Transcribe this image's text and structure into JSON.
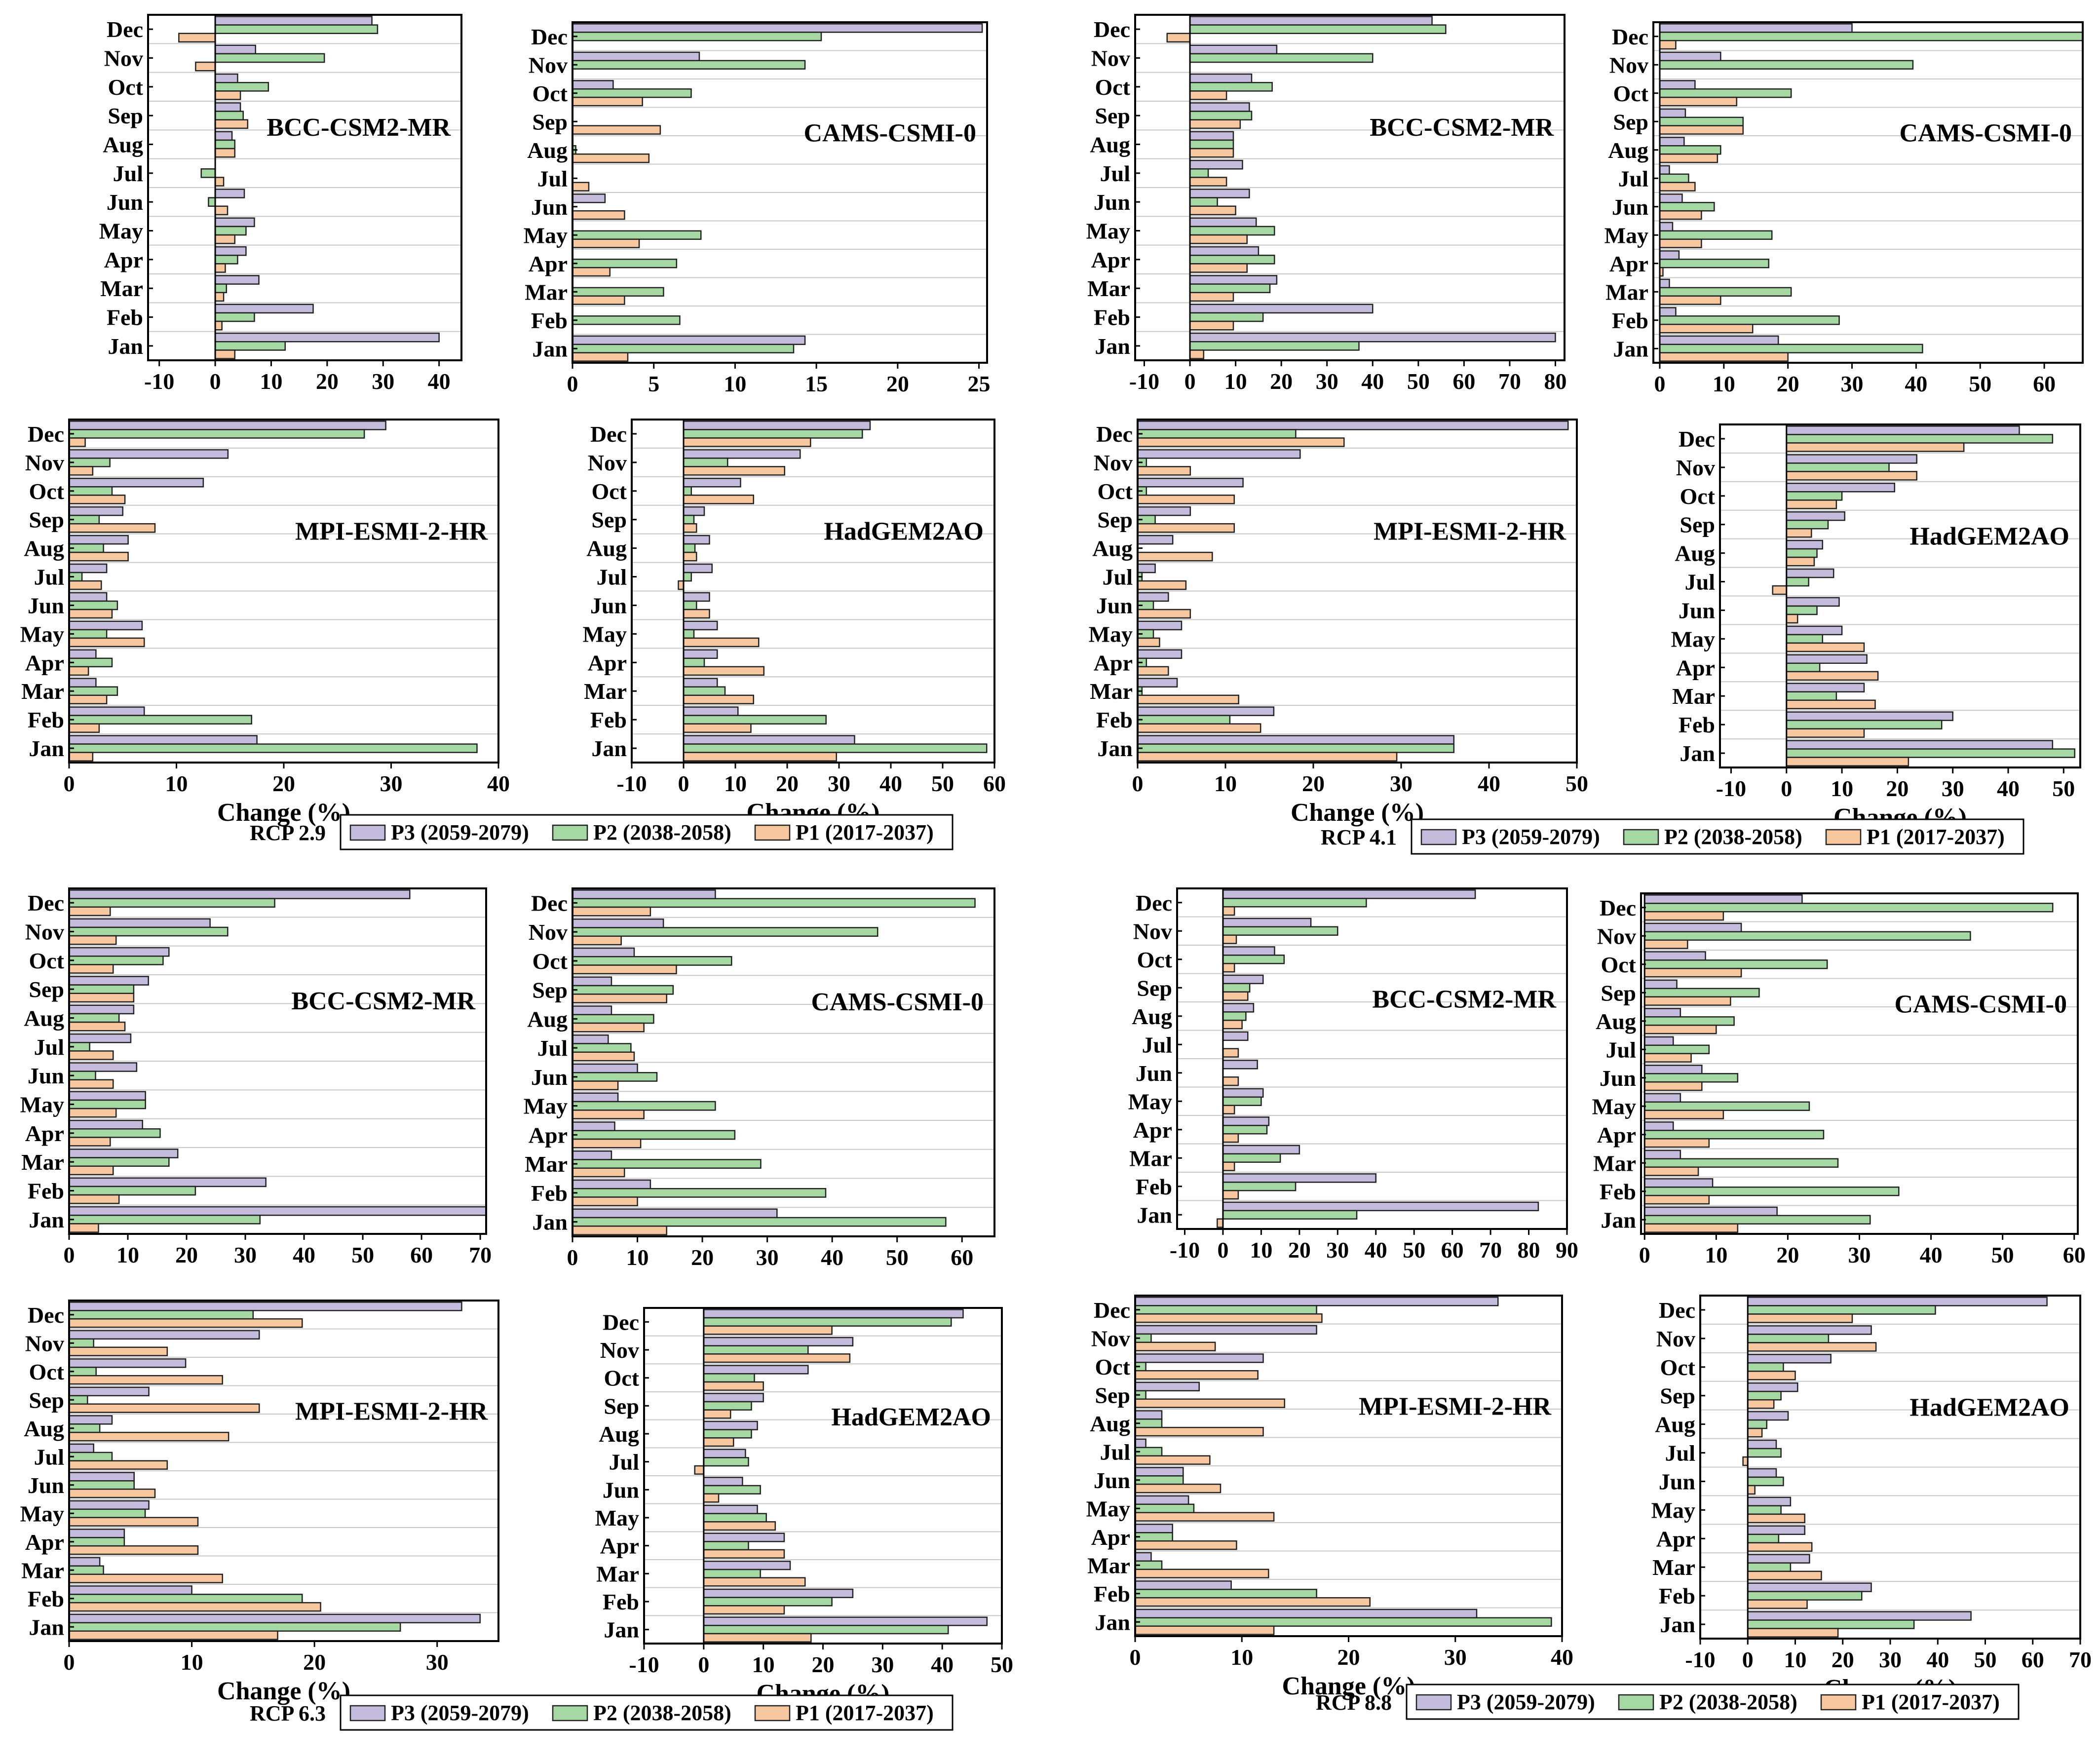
{
  "figure": {
    "months": [
      "Jan",
      "Feb",
      "Mar",
      "Apr",
      "May",
      "Jun",
      "Jul",
      "Aug",
      "Sep",
      "Oct",
      "Nov",
      "Dec"
    ],
    "xlabel": "Change (%)",
    "series_names": [
      "P3 (2059-2079)",
      "P2 (2038-2058)",
      "P1 (2017-2037)"
    ],
    "colors": {
      "P3": "#c5bbdc",
      "P2": "#a6d8a4",
      "P1": "#f7c8a0",
      "edge": "#222222",
      "grid": "#c8c8c8"
    },
    "groups": [
      {
        "label": "RCP 2.9"
      },
      {
        "label": "RCP 4.1"
      },
      {
        "label": "RCP 6.3"
      },
      {
        "label": "RCP 8.8"
      }
    ]
  },
  "chart_data": [
    {
      "type": "bar",
      "orientation": "horizontal",
      "scenario": "RCP 2.9",
      "title": "BCC-CSM2-MR",
      "xlabel": "",
      "xlim": [
        -12,
        44
      ],
      "xticks": [
        -10,
        0,
        10,
        20,
        30,
        40
      ],
      "series": [
        {
          "name": "P3 (2059-2079)",
          "values": [
            40,
            17.5,
            7.8,
            5.5,
            7,
            5.2,
            0,
            3,
            4.5,
            4,
            7.2,
            28
          ]
        },
        {
          "name": "P2 (2038-2058)",
          "values": [
            12.5,
            7,
            2,
            4,
            5.5,
            -1.2,
            -2.5,
            3.5,
            5,
            9.5,
            19.5,
            29
          ]
        },
        {
          "name": "P1 (2017-2037)",
          "values": [
            3.5,
            1.2,
            1.5,
            1.8,
            3.5,
            2.2,
            1.5,
            3.5,
            5.8,
            4.5,
            -3.5,
            -6.5
          ]
        }
      ]
    },
    {
      "type": "bar",
      "orientation": "horizontal",
      "scenario": "RCP 2.9",
      "title": "CAMS-CSMI-0",
      "xlabel": "",
      "xlim": [
        0,
        25.5
      ],
      "xticks": [
        0,
        5,
        10,
        15,
        20,
        25
      ],
      "series": [
        {
          "name": "P3 (2059-2079)",
          "values": [
            14.3,
            0,
            0,
            0,
            0,
            2,
            0,
            0,
            0,
            2.5,
            7.8,
            25.2
          ]
        },
        {
          "name": "P2 (2038-2058)",
          "values": [
            13.6,
            6.6,
            5.6,
            6.4,
            7.9,
            0,
            0,
            0.2,
            0,
            7.3,
            14.3,
            15.3
          ]
        },
        {
          "name": "P1 (2017-2037)",
          "values": [
            3.4,
            0,
            3.2,
            2.3,
            4.1,
            3.2,
            1,
            4.7,
            5.4,
            4.3,
            0,
            0
          ]
        }
      ]
    },
    {
      "type": "bar",
      "orientation": "horizontal",
      "scenario": "RCP 2.9",
      "title": "MPI-ESMI-2-HR",
      "xlabel": "Change (%)",
      "xlim": [
        0,
        40
      ],
      "xticks": [
        0,
        10,
        20,
        30,
        40
      ],
      "series": [
        {
          "name": "P3 (2059-2079)",
          "values": [
            17.5,
            7,
            2.5,
            2.5,
            6.8,
            3.5,
            3.5,
            5.5,
            5,
            12.5,
            14.8,
            29.5
          ]
        },
        {
          "name": "P2 (2038-2058)",
          "values": [
            38,
            17,
            4.5,
            4,
            3.5,
            4.5,
            1.2,
            3.2,
            2.8,
            4,
            3.8,
            27.5
          ]
        },
        {
          "name": "P1 (2017-2037)",
          "values": [
            2.2,
            2.8,
            3.5,
            1.8,
            7,
            4,
            3,
            5.5,
            8,
            5.2,
            2.2,
            1.5
          ]
        }
      ]
    },
    {
      "type": "bar",
      "orientation": "horizontal",
      "scenario": "RCP 2.9",
      "title": "HadGEM2AO",
      "xlabel": "Change (%)",
      "xlim": [
        -10,
        60
      ],
      "xticks": [
        -10,
        0,
        10,
        20,
        30,
        40,
        50,
        60
      ],
      "series": [
        {
          "name": "P3 (2059-2079)",
          "values": [
            33,
            10.5,
            6.5,
            6.5,
            6.5,
            5,
            5.5,
            5,
            4,
            11,
            22.5,
            36
          ]
        },
        {
          "name": "P2 (2038-2058)",
          "values": [
            58.5,
            27.5,
            8,
            4,
            2,
            2.5,
            1.5,
            2.2,
            2,
            1.5,
            8.5,
            34.5
          ]
        },
        {
          "name": "P1 (2017-2037)",
          "values": [
            29.5,
            13,
            13.5,
            15.5,
            14.5,
            5,
            -1,
            2.5,
            2.5,
            13.5,
            19.5,
            24.5
          ]
        }
      ]
    },
    {
      "type": "bar",
      "orientation": "horizontal",
      "scenario": "RCP 4.1",
      "title": "BCC-CSM2-MR",
      "xlabel": "",
      "xlim": [
        -12,
        82
      ],
      "xticks": [
        -10,
        0,
        10,
        20,
        30,
        40,
        50,
        60,
        70,
        80
      ],
      "series": [
        {
          "name": "P3 (2059-2079)",
          "values": [
            80,
            40,
            19,
            15,
            14.5,
            13,
            11.5,
            9.5,
            13,
            13.5,
            19,
            53
          ]
        },
        {
          "name": "P2 (2038-2058)",
          "values": [
            37,
            16,
            17.5,
            18.5,
            18.5,
            6,
            4,
            9.5,
            13.5,
            18,
            40,
            56
          ]
        },
        {
          "name": "P1 (2017-2037)",
          "values": [
            3,
            9.5,
            9.5,
            12.5,
            12.5,
            10,
            8,
            9.5,
            11,
            8,
            0,
            -5
          ]
        }
      ]
    },
    {
      "type": "bar",
      "orientation": "horizontal",
      "scenario": "RCP 4.1",
      "title": "CAMS-CSMI-0",
      "xlabel": "",
      "xlim": [
        -1,
        66
      ],
      "xticks": [
        0,
        10,
        20,
        30,
        40,
        50,
        60
      ],
      "series": [
        {
          "name": "P3 (2059-2079)",
          "values": [
            18.5,
            2.5,
            1.5,
            3,
            2,
            3.5,
            1.5,
            3.8,
            4,
            5.5,
            9.5,
            30
          ]
        },
        {
          "name": "P2 (2038-2058)",
          "values": [
            41,
            28,
            20.5,
            17,
            17.5,
            8.5,
            4.5,
            9.5,
            13,
            20.5,
            39.5,
            66
          ]
        },
        {
          "name": "P1 (2017-2037)",
          "values": [
            20,
            14.5,
            9.5,
            0.5,
            6.5,
            6.5,
            5.5,
            9,
            13,
            12,
            0,
            2.5
          ]
        }
      ]
    },
    {
      "type": "bar",
      "orientation": "horizontal",
      "scenario": "RCP 4.1",
      "title": "MPI-ESMI-2-HR",
      "xlabel": "Change (%)",
      "xlim": [
        0,
        50
      ],
      "xticks": [
        0,
        10,
        20,
        30,
        40,
        50
      ],
      "series": [
        {
          "name": "P3 (2059-2079)",
          "values": [
            36,
            15.5,
            4.5,
            5,
            5,
            3.5,
            2,
            4,
            6,
            12,
            18.5,
            49
          ]
        },
        {
          "name": "P2 (2038-2058)",
          "values": [
            36,
            10.5,
            0.5,
            1,
            1.8,
            1.8,
            0.5,
            0,
            2,
            1,
            1,
            18
          ]
        },
        {
          "name": "P1 (2017-2037)",
          "values": [
            29.5,
            14,
            11.5,
            3.5,
            2.5,
            6,
            5.5,
            8.5,
            11,
            11,
            6,
            23.5
          ]
        }
      ]
    },
    {
      "type": "bar",
      "orientation": "horizontal",
      "scenario": "RCP 4.1",
      "title": "HadGEM2AO",
      "xlabel": "Change (%)",
      "xlim": [
        -12,
        53
      ],
      "xticks": [
        -10,
        0,
        10,
        20,
        30,
        40,
        50
      ],
      "series": [
        {
          "name": "P3 (2059-2079)",
          "values": [
            48,
            30,
            14,
            14.5,
            10,
            9.5,
            8.5,
            6.5,
            10.5,
            19.5,
            23.5,
            42
          ]
        },
        {
          "name": "P2 (2038-2058)",
          "values": [
            52,
            28,
            9,
            6,
            6.5,
            5.5,
            4,
            5.5,
            7.5,
            10,
            18.5,
            48
          ]
        },
        {
          "name": "P1 (2017-2037)",
          "values": [
            22,
            14,
            16,
            16.5,
            14,
            2,
            -2.5,
            5,
            4.5,
            9,
            23.5,
            32
          ]
        }
      ]
    },
    {
      "type": "bar",
      "orientation": "horizontal",
      "scenario": "RCP 6.3",
      "title": "BCC-CSM2-MR",
      "xlabel": "",
      "xlim": [
        0,
        71
      ],
      "xticks": [
        0,
        10,
        20,
        30,
        40,
        50,
        60,
        70
      ],
      "series": [
        {
          "name": "P3 (2059-2079)",
          "values": [
            71,
            33.5,
            18.5,
            12.5,
            13,
            11.5,
            10.5,
            11,
            13.5,
            17,
            24,
            58
          ]
        },
        {
          "name": "P2 (2038-2058)",
          "values": [
            32.5,
            21.5,
            17,
            15.5,
            13,
            4.5,
            3.5,
            8.5,
            11,
            16,
            27,
            35
          ]
        },
        {
          "name": "P1 (2017-2037)",
          "values": [
            5,
            8.5,
            7.5,
            7,
            8,
            7.5,
            7.5,
            9.5,
            11,
            7.5,
            8,
            7
          ]
        }
      ]
    },
    {
      "type": "bar",
      "orientation": "horizontal",
      "scenario": "RCP 6.3",
      "title": "CAMS-CSMI-0",
      "xlabel": "",
      "xlim": [
        0,
        65
      ],
      "xticks": [
        0,
        10,
        20,
        30,
        40,
        50,
        60
      ],
      "series": [
        {
          "name": "P3 (2059-2079)",
          "values": [
            31.5,
            12,
            6,
            6.5,
            7,
            10,
            5.5,
            6,
            6,
            9.5,
            14,
            22
          ]
        },
        {
          "name": "P2 (2038-2058)",
          "values": [
            57.5,
            39,
            29,
            25,
            22,
            13,
            9,
            12.5,
            15.5,
            24.5,
            47,
            62
          ]
        },
        {
          "name": "P1 (2017-2037)",
          "values": [
            14.5,
            10,
            8,
            10.5,
            11,
            7,
            9.5,
            11,
            14.5,
            16,
            7.5,
            12
          ]
        }
      ]
    },
    {
      "type": "bar",
      "orientation": "horizontal",
      "scenario": "RCP 6.3",
      "title": "MPI-ESMI-2-HR",
      "xlabel": "Change (%)",
      "xlim": [
        0,
        35
      ],
      "xticks": [
        0,
        10,
        20,
        30
      ],
      "series": [
        {
          "name": "P3 (2059-2079)",
          "values": [
            33.5,
            10,
            2.5,
            4.5,
            6.5,
            5.3,
            2,
            3.5,
            6.5,
            9.5,
            15.5,
            32
          ]
        },
        {
          "name": "P2 (2038-2058)",
          "values": [
            27,
            19,
            2.8,
            4.5,
            6.2,
            5.3,
            3.5,
            2.5,
            1.5,
            2.2,
            2,
            15
          ]
        },
        {
          "name": "P1 (2017-2037)",
          "values": [
            17,
            20.5,
            12.5,
            10.5,
            10.5,
            7,
            8,
            13,
            15.5,
            12.5,
            8,
            19
          ]
        }
      ]
    },
    {
      "type": "bar",
      "orientation": "horizontal",
      "scenario": "RCP 6.3",
      "title": "HadGEM2AO",
      "xlabel": "Change (%)",
      "xlim": [
        -10,
        50
      ],
      "xticks": [
        -10,
        0,
        10,
        20,
        30,
        40,
        50
      ],
      "series": [
        {
          "name": "P3 (2059-2079)",
          "values": [
            47.5,
            25,
            14.5,
            13.5,
            9,
            6.5,
            7,
            9,
            10,
            17.5,
            25,
            43.5
          ]
        },
        {
          "name": "P2 (2038-2058)",
          "values": [
            41,
            21.5,
            9.5,
            7.5,
            10.5,
            9.5,
            7.5,
            8,
            8,
            8.5,
            17.5,
            41.5
          ]
        },
        {
          "name": "P1 (2017-2037)",
          "values": [
            18,
            13.5,
            17,
            13.5,
            12,
            2.5,
            -1.5,
            5,
            4.5,
            10,
            24.5,
            21.5
          ]
        }
      ]
    },
    {
      "type": "bar",
      "orientation": "horizontal",
      "scenario": "RCP 8.8",
      "title": "BCC-CSM2-MR",
      "xlabel": "",
      "xlim": [
        -12,
        90
      ],
      "xticks": [
        -10,
        0,
        10,
        20,
        30,
        40,
        50,
        60,
        70,
        80,
        90
      ],
      "series": [
        {
          "name": "P3 (2059-2079)",
          "values": [
            82.5,
            40,
            20,
            12,
            10.5,
            9,
            6.5,
            8,
            10.5,
            13.5,
            23,
            66
          ]
        },
        {
          "name": "P2 (2038-2058)",
          "values": [
            35,
            19,
            15,
            11.5,
            10,
            0,
            0,
            6,
            7,
            16,
            30,
            37.5
          ]
        },
        {
          "name": "P1 (2017-2037)",
          "values": [
            -1.5,
            4,
            3,
            4,
            3,
            4,
            4,
            5,
            6.5,
            3,
            3.5,
            3
          ]
        }
      ]
    },
    {
      "type": "bar",
      "orientation": "horizontal",
      "scenario": "RCP 8.8",
      "title": "CAMS-CSMI-0",
      "xlabel": "",
      "xlim": [
        -0.5,
        60.5
      ],
      "xticks": [
        0,
        10,
        20,
        30,
        40,
        50,
        60
      ],
      "series": [
        {
          "name": "P3 (2059-2079)",
          "values": [
            18.5,
            9.5,
            5,
            4,
            5,
            8,
            4,
            5,
            4.5,
            8.5,
            13.5,
            22
          ]
        },
        {
          "name": "P2 (2038-2058)",
          "values": [
            31.5,
            35.5,
            27,
            25,
            23,
            13,
            9,
            12.5,
            16,
            25.5,
            45.5,
            57
          ]
        },
        {
          "name": "P1 (2017-2037)",
          "values": [
            13,
            9,
            7.5,
            9,
            11,
            8,
            6.5,
            10,
            12,
            13.5,
            6,
            11
          ]
        }
      ]
    },
    {
      "type": "bar",
      "orientation": "horizontal",
      "scenario": "RCP 8.8",
      "title": "MPI-ESMI-2-HR",
      "xlabel": "Change (%)",
      "xlim": [
        0,
        40
      ],
      "xticks": [
        0,
        10,
        20,
        30,
        40
      ],
      "series": [
        {
          "name": "P3 (2059-2079)",
          "values": [
            32,
            9,
            1.5,
            3.5,
            5,
            4.5,
            1,
            2.5,
            6,
            12,
            17,
            34
          ]
        },
        {
          "name": "P2 (2038-2058)",
          "values": [
            39,
            17,
            2.5,
            3.5,
            5.5,
            4.5,
            2.5,
            2.5,
            1,
            1,
            1.5,
            17
          ]
        },
        {
          "name": "P1 (2017-2037)",
          "values": [
            13,
            22,
            12.5,
            9.5,
            13,
            8,
            7,
            12,
            14,
            11.5,
            7.5,
            17.5
          ]
        }
      ]
    },
    {
      "type": "bar",
      "orientation": "horizontal",
      "scenario": "RCP 8.8",
      "title": "HadGEM2AO",
      "xlabel": "Change (%)",
      "xlim": [
        -10,
        70
      ],
      "xticks": [
        -10,
        0,
        10,
        20,
        30,
        40,
        50,
        60,
        70
      ],
      "series": [
        {
          "name": "P3 (2059-2079)",
          "values": [
            47,
            26,
            13,
            12,
            9,
            6,
            6,
            8.5,
            10.5,
            17.5,
            26,
            63
          ]
        },
        {
          "name": "P2 (2038-2058)",
          "values": [
            35,
            24,
            9,
            6.5,
            7,
            7.5,
            7,
            4,
            7,
            7.5,
            17,
            39.5
          ]
        },
        {
          "name": "P1 (2017-2037)",
          "values": [
            19,
            12.5,
            15.5,
            13.5,
            12,
            1.5,
            -1,
            3,
            5.5,
            10,
            27,
            22
          ]
        }
      ]
    }
  ]
}
